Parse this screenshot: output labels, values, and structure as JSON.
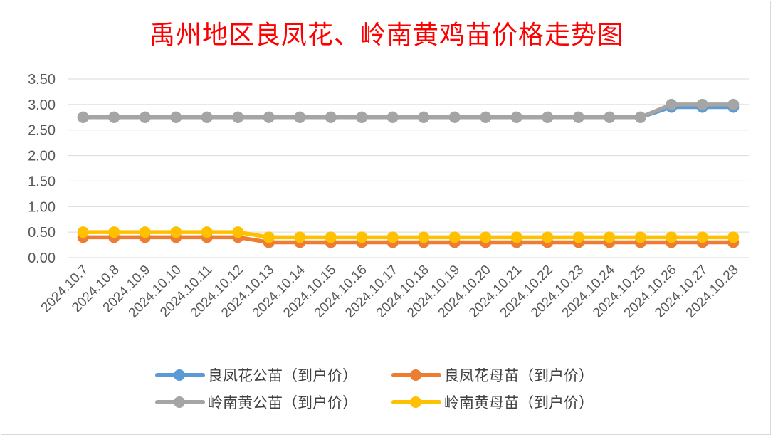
{
  "chart_data": {
    "type": "line",
    "title": "禹州地区良凤花、岭南黄鸡苗价格走势图",
    "categories": [
      "2024.10.7",
      "2024.10.8",
      "2024.10.9",
      "2024.10.10",
      "2024.10.11",
      "2024.10.12",
      "2024.10.13",
      "2024.10.14",
      "2024.10.15",
      "2024.10.16",
      "2024.10.17",
      "2024.10.18",
      "2024.10.19",
      "2024.10.20",
      "2024.10.21",
      "2024.10.22",
      "2024.10.23",
      "2024.10.24",
      "2024.10.25",
      "2024.10.26",
      "2024.10.27",
      "2024.10.28"
    ],
    "yticks": [
      "0.00",
      "0.50",
      "1.00",
      "1.50",
      "2.00",
      "2.50",
      "3.00",
      "3.50"
    ],
    "ylim": [
      0,
      3.5
    ],
    "grid": true,
    "legend_position": "bottom",
    "series": [
      {
        "name": "良凤花公苗（到户价）",
        "color": "#5b9bd5",
        "values": [
          2.75,
          2.75,
          2.75,
          2.75,
          2.75,
          2.75,
          2.75,
          2.75,
          2.75,
          2.75,
          2.75,
          2.75,
          2.75,
          2.75,
          2.75,
          2.75,
          2.75,
          2.75,
          2.75,
          2.95,
          2.95,
          2.95
        ]
      },
      {
        "name": "良凤花母苗（到户价）",
        "color": "#ed7d31",
        "values": [
          0.4,
          0.4,
          0.4,
          0.4,
          0.4,
          0.4,
          0.3,
          0.3,
          0.3,
          0.3,
          0.3,
          0.3,
          0.3,
          0.3,
          0.3,
          0.3,
          0.3,
          0.3,
          0.3,
          0.3,
          0.3,
          0.3
        ]
      },
      {
        "name": "岭南黄公苗（到户价）",
        "color": "#a5a5a5",
        "values": [
          2.75,
          2.75,
          2.75,
          2.75,
          2.75,
          2.75,
          2.75,
          2.75,
          2.75,
          2.75,
          2.75,
          2.75,
          2.75,
          2.75,
          2.75,
          2.75,
          2.75,
          2.75,
          2.75,
          3.0,
          3.0,
          3.0
        ]
      },
      {
        "name": "岭南黄母苗（到户价）",
        "color": "#ffc000",
        "values": [
          0.5,
          0.5,
          0.5,
          0.5,
          0.5,
          0.5,
          0.4,
          0.4,
          0.4,
          0.4,
          0.4,
          0.4,
          0.4,
          0.4,
          0.4,
          0.4,
          0.4,
          0.4,
          0.4,
          0.4,
          0.4,
          0.4
        ]
      }
    ]
  }
}
